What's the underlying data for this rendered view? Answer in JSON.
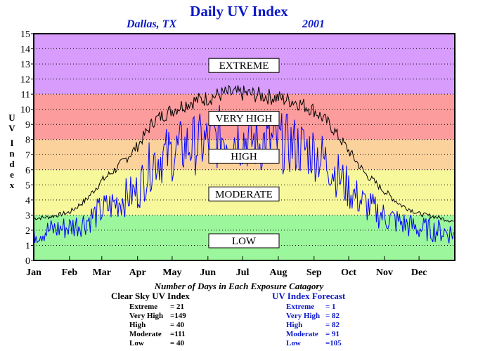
{
  "header": {
    "title": "Daily UV Index",
    "location": "Dallas, TX",
    "year": "2001"
  },
  "y_axis_label": [
    "U",
    "V",
    "I",
    "n",
    "d",
    "e",
    "x"
  ],
  "caption": "Number of Days in Each Exposure Catagory",
  "stats": {
    "clear_sky": {
      "title": "Clear Sky UV Index",
      "rows": [
        {
          "label": "Extreme",
          "value": "= 21"
        },
        {
          "label": "Very High",
          "value": "=149"
        },
        {
          "label": "High",
          "value": "= 40"
        },
        {
          "label": "Moderate",
          "value": "=111"
        },
        {
          "label": "Low",
          "value": "= 40"
        }
      ]
    },
    "forecast": {
      "title": "UV Index Forecast",
      "rows": [
        {
          "label": "Extreme",
          "value": "= 1"
        },
        {
          "label": "Very High",
          "value": "= 82"
        },
        {
          "label": "High",
          "value": "= 82"
        },
        {
          "label": "Moderate",
          "value": "= 91"
        },
        {
          "label": "Low",
          "value": "=105"
        }
      ]
    }
  },
  "chart_data": {
    "type": "line",
    "ylim": [
      0,
      15
    ],
    "yticks": [
      0,
      1,
      2,
      3,
      4,
      5,
      6,
      7,
      8,
      9,
      10,
      11,
      12,
      13,
      14,
      15
    ],
    "x_tick_labels": [
      "Jan",
      "Feb",
      "Mar",
      "Apr",
      "May",
      "Jun",
      "Jul",
      "Aug",
      "Sep",
      "Oct",
      "Nov",
      "Dec"
    ],
    "grid": "horizontal dotted",
    "bands": [
      {
        "label": "LOW",
        "from": 0,
        "to": 3,
        "color": "#9cf79c",
        "label_value": 1.3
      },
      {
        "label": "MODERATE",
        "from": 3,
        "to": 6,
        "color": "#f7f79c",
        "label_value": 4.4
      },
      {
        "label": "HIGH",
        "from": 6,
        "to": 8,
        "color": "#fcd29c",
        "label_value": 6.9
      },
      {
        "label": "VERY HIGH",
        "from": 8,
        "to": 11,
        "color": "#fc9c9c",
        "label_value": 9.4
      },
      {
        "label": "EXTREME",
        "from": 11,
        "to": 15,
        "color": "#d79cfc",
        "label_value": 12.9
      }
    ],
    "series": [
      {
        "color": "#000000",
        "x": [
          "Jan 1",
          "Jan 15",
          "Feb 1",
          "Feb 15",
          "Mar 1",
          "Mar 15",
          "Apr 1",
          "Apr 15",
          "May 1",
          "May 15",
          "Jun 1",
          "Jun 15",
          "Jul 1",
          "Jul 15",
          "Aug 1",
          "Aug 15",
          "Sep 1",
          "Sep 15",
          "Oct 1",
          "Oct 15",
          "Nov 1",
          "Nov 15",
          "Dec 1",
          "Dec 15",
          "Dec 31"
        ],
        "values": [
          2.8,
          2.9,
          3.2,
          4.0,
          5.3,
          6.2,
          7.6,
          9.3,
          10.0,
          10.5,
          10.8,
          11.1,
          11.1,
          11.0,
          10.8,
          10.6,
          10.0,
          9.0,
          7.3,
          5.8,
          4.6,
          3.7,
          3.1,
          2.9,
          2.6
        ]
      },
      {
        "color": "#0000ff",
        "x": [
          "Jan 1",
          "Jan 15",
          "Feb 1",
          "Feb 15",
          "Mar 1",
          "Mar 15",
          "Apr 1",
          "Apr 15",
          "May 1",
          "May 15",
          "Jun 1",
          "Jun 15",
          "Jul 1",
          "Jul 15",
          "Aug 1",
          "Aug 15",
          "Sep 1",
          "Sep 15",
          "Oct 1",
          "Oct 15",
          "Nov 1",
          "Nov 15",
          "Dec 1",
          "Dec 15",
          "Dec 31"
        ],
        "values": [
          1.8,
          2.0,
          2.2,
          2.6,
          3.3,
          3.9,
          4.6,
          6.7,
          7.1,
          7.6,
          7.8,
          8.3,
          8.1,
          7.8,
          7.8,
          7.6,
          7.2,
          6.3,
          4.7,
          3.7,
          2.9,
          2.5,
          2.1,
          2.0,
          1.8
        ]
      }
    ]
  }
}
